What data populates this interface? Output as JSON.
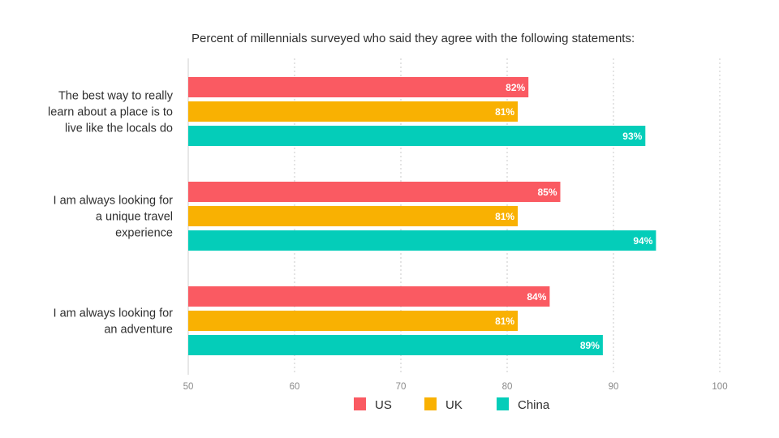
{
  "colors": {
    "US": "#fa5a62",
    "UK": "#f9b102",
    "China": "#04cdb9",
    "grid": "#c9c9c9",
    "axis": "#cfcfcf"
  },
  "chart_data": {
    "type": "bar",
    "orientation": "horizontal",
    "title": "Percent of millennials surveyed who said they agree with the following statements:",
    "categories": [
      [
        "The best way to really",
        "learn about a place is to",
        "live like the locals do"
      ],
      [
        "I am always looking for",
        "a unique travel",
        "experience"
      ],
      [
        "I am always looking for",
        "an adventure"
      ]
    ],
    "series": [
      {
        "name": "US",
        "values": [
          82,
          85,
          84
        ],
        "labels": [
          "82%",
          "85%",
          "84%"
        ]
      },
      {
        "name": "UK",
        "values": [
          81,
          81,
          81
        ],
        "labels": [
          "81%",
          "81%",
          "81%"
        ]
      },
      {
        "name": "China",
        "values": [
          93,
          94,
          89
        ],
        "labels": [
          "93%",
          "94%",
          "89%"
        ]
      }
    ],
    "xlim": [
      50,
      100
    ],
    "xticks": [
      "50",
      "60",
      "70",
      "80",
      "90",
      "100"
    ],
    "grid": true,
    "legend_position": "bottom-center",
    "xlabel": "",
    "ylabel": ""
  }
}
